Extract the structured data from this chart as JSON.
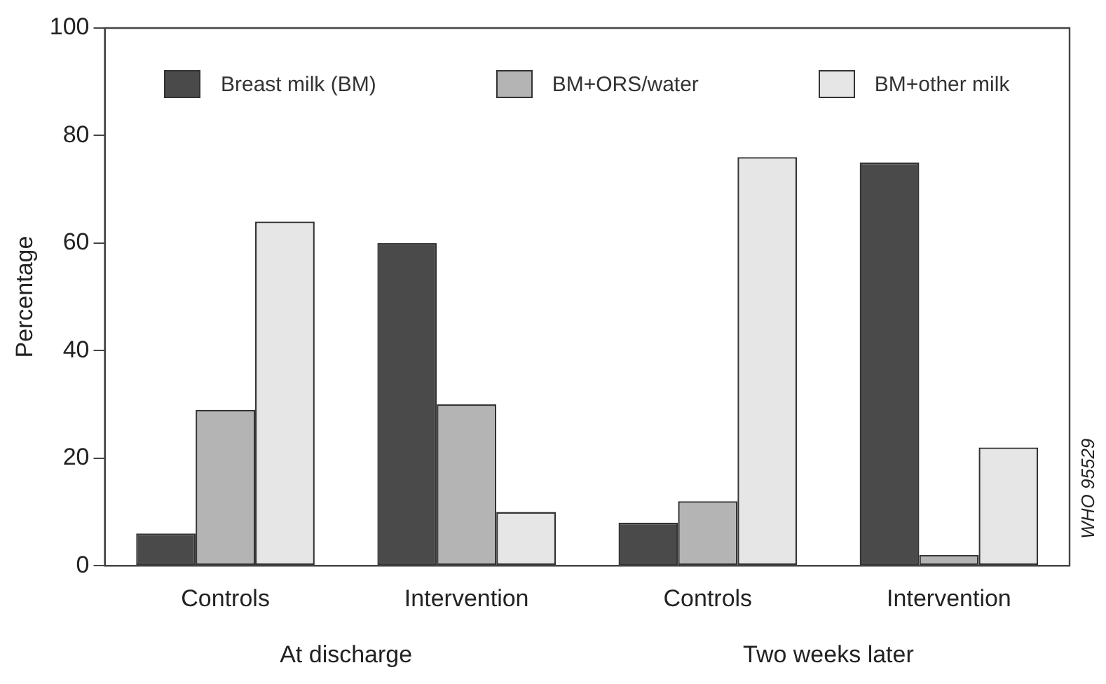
{
  "chart_data": {
    "type": "bar",
    "ylabel": "Percentage",
    "categories": [
      "Controls",
      "Intervention",
      "Controls",
      "Intervention"
    ],
    "series": [
      {
        "name": "Breast milk (BM)",
        "color": "#4a4a4a",
        "values": [
          6,
          60,
          8,
          75
        ]
      },
      {
        "name": "BM+ORS/water",
        "color": "#b4b4b4",
        "values": [
          29,
          30,
          12,
          2
        ]
      },
      {
        "name": "BM+other milk",
        "color": "#e6e6e6",
        "values": [
          64,
          10,
          76,
          22
        ]
      }
    ],
    "ylim": [
      0,
      100
    ],
    "yticks": [
      0,
      20,
      40,
      60,
      80,
      100
    ],
    "grid": false,
    "legend": "top",
    "annotations": [
      "At discharge",
      "Two weeks later",
      "WHO 95529"
    ]
  }
}
